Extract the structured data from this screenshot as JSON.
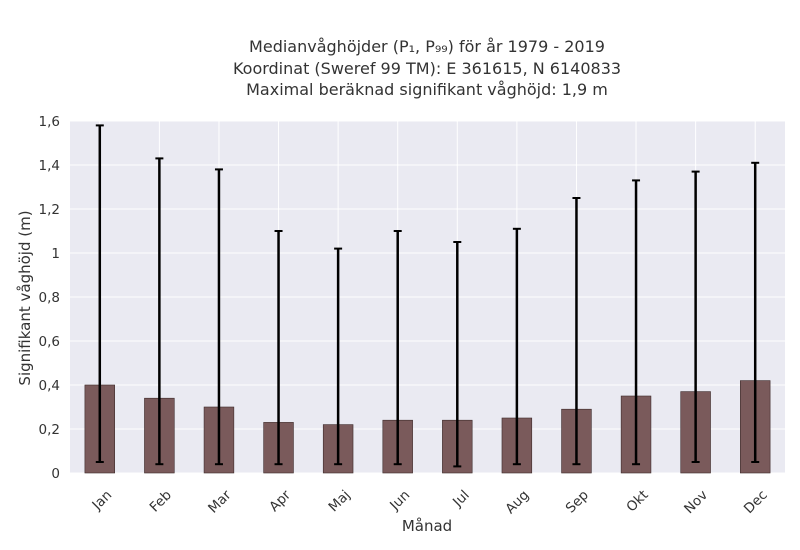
{
  "chart_data": {
    "type": "bar",
    "title_lines": [
      "Medianvåghöjder (P₁, P₉₉) för år 1979 - 2019",
      "Koordinat (Sweref 99 TM): E 361615, N 6140833",
      "Maximal beräknad signifikant våghöjd: 1,9 m"
    ],
    "xlabel": "Månad",
    "ylabel": "Signifikant våghöjd (m)",
    "categories": [
      "Jan",
      "Feb",
      "Mar",
      "Apr",
      "Maj",
      "Jun",
      "Jul",
      "Aug",
      "Sep",
      "Okt",
      "Nov",
      "Dec"
    ],
    "values": [
      0.4,
      0.34,
      0.3,
      0.23,
      0.22,
      0.24,
      0.24,
      0.25,
      0.29,
      0.35,
      0.37,
      0.42
    ],
    "error_low": [
      0.05,
      0.04,
      0.04,
      0.04,
      0.04,
      0.04,
      0.03,
      0.04,
      0.04,
      0.04,
      0.05,
      0.05
    ],
    "error_high": [
      1.58,
      1.43,
      1.38,
      1.1,
      1.02,
      1.1,
      1.05,
      1.11,
      1.25,
      1.33,
      1.37,
      1.41
    ],
    "ylim": [
      0,
      1.6
    ],
    "yticks": [
      0,
      0.2,
      0.4,
      0.6,
      0.8,
      1.0,
      1.2,
      1.4,
      1.6
    ],
    "ytick_labels": [
      "0",
      "0,2",
      "0,4",
      "0,6",
      "0,8",
      "1",
      "1,2",
      "1,4",
      "1,6"
    ],
    "grid": true,
    "colors": {
      "bar": "#7a5a5b",
      "bar_edge": "#3c2a2a",
      "errorbar": "#000000",
      "background": "#eaeaf2",
      "grid": "#ffffff"
    }
  }
}
